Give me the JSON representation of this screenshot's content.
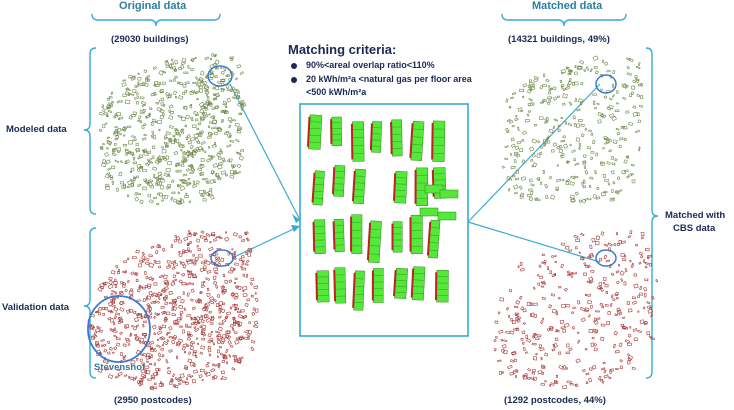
{
  "headers": {
    "original": "Original data",
    "matched": "Matched data"
  },
  "counts": {
    "original_buildings": "(29030 buildings)",
    "matched_buildings": "(14321 buildings, 49%)",
    "original_postcodes": "(2950 postcodes)",
    "matched_postcodes": "(1292 postcodes, 44%)"
  },
  "row_labels": {
    "modeled": "Modeled data",
    "validation": "Validation data",
    "matched_line1": "Matched with",
    "matched_line2": "CBS data"
  },
  "criteria": {
    "title": "Matching criteria:",
    "item1": "90%<areal overlap ratio<110%",
    "item2_line1": "20 kWh/m²a <natural gas per floor area",
    "item2_line2": "<500 kWh/m²a"
  },
  "callout": "Stevenshof",
  "colors": {
    "header_blue": "#2a7ea0",
    "text_navy": "#1a2a55",
    "bracket": "#3aaad2",
    "model_green": "#6e8a4a",
    "validation_red": "#a83a38",
    "match_green": "#55e83a",
    "match_red": "#c02020"
  }
}
